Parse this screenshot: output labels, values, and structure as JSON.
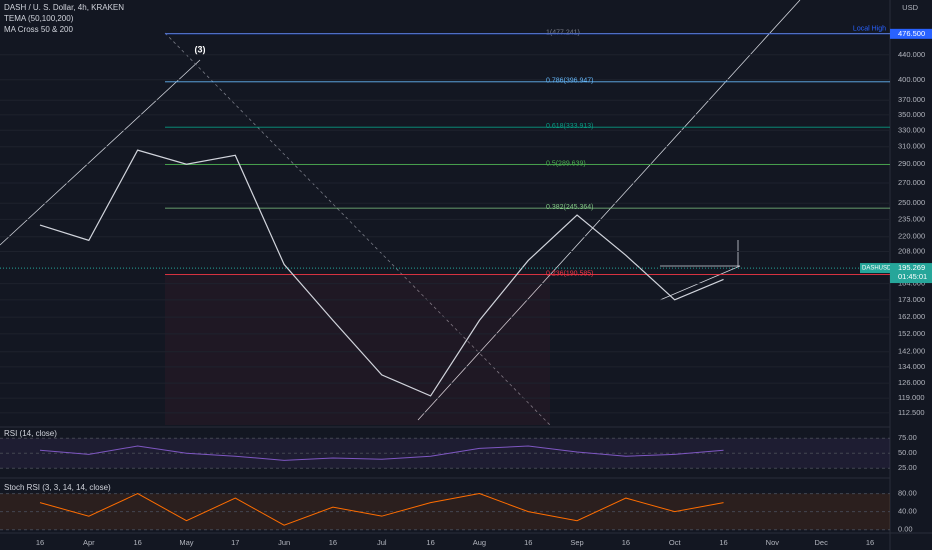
{
  "chart_data": {
    "type": "line",
    "title": "DASH / U. S. Dollar, 4h, KRAKEN",
    "indicators": [
      "TEMA (50,100,200)",
      "MA Cross 50 & 200"
    ],
    "unit": "USD",
    "log_scale": true,
    "categories": [
      "16",
      "Apr",
      "16",
      "May",
      "17",
      "Jun",
      "16",
      "Jul",
      "16",
      "Aug",
      "16",
      "Sep",
      "16",
      "Oct",
      "16",
      "Nov",
      "Dec",
      "16"
    ],
    "series": [
      {
        "name": "DASHUSD",
        "color": "#d1d4dc",
        "values": [
          230,
          217,
          306,
          290,
          300,
          198,
          160,
          130,
          120,
          160,
          201,
          239,
          205,
          173,
          187,
          null,
          null,
          null
        ]
      }
    ],
    "ylim": [
      107,
      540
    ],
    "yticks": [
      {
        "value": 440,
        "label": "440.000"
      },
      {
        "value": 400,
        "label": "400.000"
      },
      {
        "value": 370,
        "label": "370.000"
      },
      {
        "value": 350,
        "label": "350.000"
      },
      {
        "value": 330,
        "label": "330.000"
      },
      {
        "value": 310,
        "label": "310.000"
      },
      {
        "value": 290,
        "label": "290.000"
      },
      {
        "value": 270,
        "label": "270.000"
      },
      {
        "value": 250,
        "label": "250.000"
      },
      {
        "value": 235,
        "label": "235.000"
      },
      {
        "value": 220,
        "label": "220.000"
      },
      {
        "value": 208,
        "label": "208.000"
      },
      {
        "value": 184,
        "label": "184.000"
      },
      {
        "value": 173,
        "label": "173.000"
      },
      {
        "value": 162,
        "label": "162.000"
      },
      {
        "value": 152,
        "label": "152.000"
      },
      {
        "value": 142,
        "label": "142.000"
      },
      {
        "value": 134,
        "label": "134.000"
      },
      {
        "value": 126,
        "label": "126.000"
      },
      {
        "value": 119,
        "label": "119.000"
      },
      {
        "value": 112.5,
        "label": "112.500"
      }
    ],
    "fib_levels": [
      {
        "value": 477.241,
        "label": "1(477.241)",
        "color": "#787b86"
      },
      {
        "value": 396.947,
        "label": "0.786(396.947)",
        "color": "#64b5f6"
      },
      {
        "value": 333.913,
        "label": "0.618(333.913)",
        "color": "#089981"
      },
      {
        "value": 289.639,
        "label": "0.5(289.639)",
        "color": "#4caf50"
      },
      {
        "value": 245.364,
        "label": "0.382(245.364)",
        "color": "#81c784"
      },
      {
        "value": 190.585,
        "label": "0.236(190.585)",
        "color": "#f23645"
      }
    ],
    "local_high": {
      "label": "Local High",
      "value": 476.5,
      "value_label": "476.500",
      "color": "#2962ff"
    },
    "last_price": {
      "name": "DASHUSD",
      "value": 195.269,
      "value_label": "195.269",
      "countdown": "01:45:01",
      "color": "#26a69a"
    },
    "wave_label": "(3)",
    "rsi": {
      "title": "RSI (14, close)",
      "color": "#7e57c2",
      "ylim": [
        12,
        92
      ],
      "yticks": [
        {
          "value": 75,
          "label": "75.00"
        },
        {
          "value": 50,
          "label": "50.00"
        },
        {
          "value": 25,
          "label": "25.00"
        }
      ],
      "values": [
        55,
        48,
        62,
        50,
        45,
        38,
        42,
        40,
        45,
        58,
        62,
        52,
        45,
        48,
        55,
        null,
        null,
        null
      ]
    },
    "stoch_rsi": {
      "title": "Stoch RSI (3, 3, 14, 14, close)",
      "color": "#ff6d00",
      "ylim": [
        -5,
        110
      ],
      "yticks": [
        {
          "value": 80,
          "label": "80.00"
        },
        {
          "value": 40,
          "label": "40.00"
        },
        {
          "value": 0,
          "label": "0.00"
        }
      ],
      "values": [
        60,
        30,
        80,
        20,
        70,
        10,
        50,
        30,
        60,
        80,
        40,
        20,
        70,
        40,
        60,
        null,
        null,
        null
      ]
    }
  }
}
